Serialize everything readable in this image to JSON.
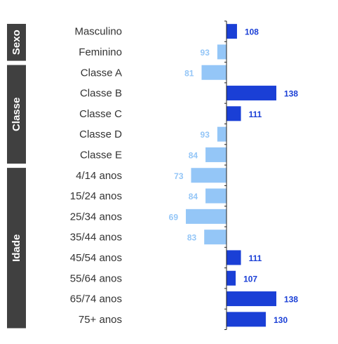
{
  "chart_data": {
    "type": "bar",
    "orientation": "horizontal",
    "baseline": 100,
    "colors": {
      "above": "#1a3fd6",
      "below": "#94c6f7",
      "group_bg": "#404040"
    },
    "groups": [
      {
        "label": "Sexo",
        "items": [
          {
            "label": "Masculino",
            "value": 108
          },
          {
            "label": "Feminino",
            "value": 93
          }
        ]
      },
      {
        "label": "Classe",
        "items": [
          {
            "label": "Classe A",
            "value": 81
          },
          {
            "label": "Classe B",
            "value": 138
          },
          {
            "label": "Classe C",
            "value": 111
          },
          {
            "label": "Classe D",
            "value": 93
          },
          {
            "label": "Classe E",
            "value": 84
          }
        ]
      },
      {
        "label": "Idade",
        "items": [
          {
            "label": "4/14 anos",
            "value": 73
          },
          {
            "label": "15/24 anos",
            "value": 84
          },
          {
            "label": "25/34 anos",
            "value": 69
          },
          {
            "label": "35/44 anos",
            "value": 83
          },
          {
            "label": "45/54 anos",
            "value": 111
          },
          {
            "label": "55/64 anos",
            "value": 107
          },
          {
            "label": "65/74 anos",
            "value": 138
          },
          {
            "label": "75+ anos",
            "value": 130
          }
        ]
      }
    ]
  }
}
